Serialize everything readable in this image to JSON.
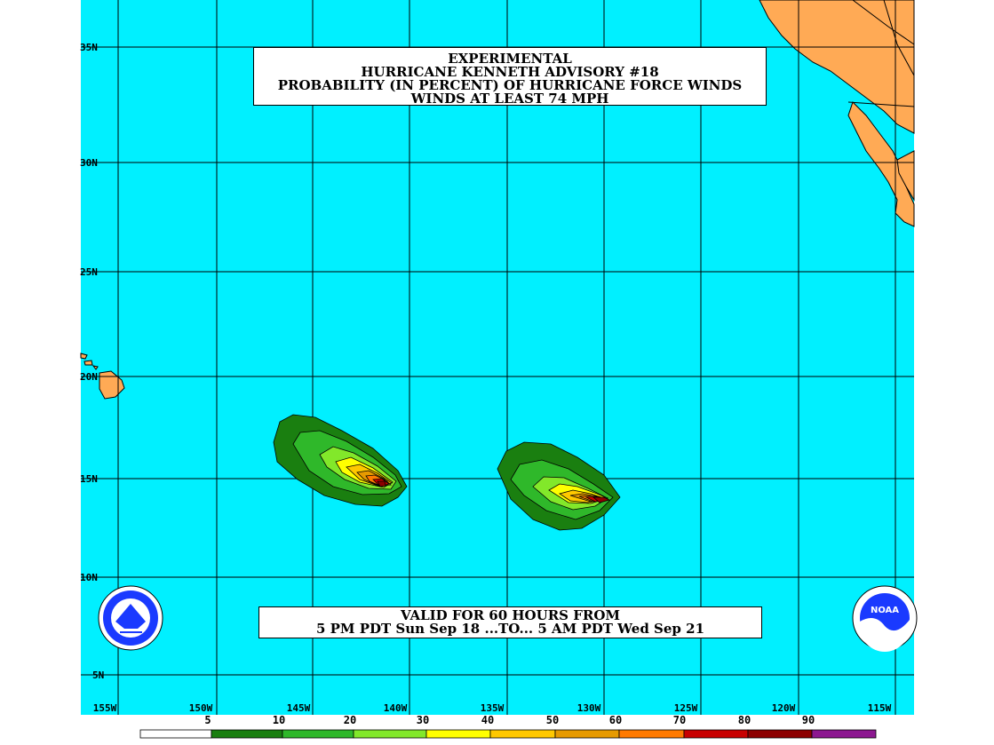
{
  "title": {
    "line1": "EXPERIMENTAL",
    "line2": "HURRICANE KENNETH ADVISORY #18",
    "line3": "PROBABILITY (IN PERCENT) OF HURRICANE FORCE WINDS",
    "line4": "WINDS AT LEAST 74 MPH"
  },
  "valid": {
    "line1": "VALID FOR 60 HOURS FROM",
    "line2": "5 PM PDT Sun Sep 18 ...TO... 5 AM PDT Wed Sep 21"
  },
  "lat_labels": [
    "35N",
    "30N",
    "25N",
    "20N",
    "15N",
    "10N",
    "5N"
  ],
  "lon_labels": [
    "155W",
    "150W",
    "145W",
    "140W",
    "135W",
    "130W",
    "125W",
    "120W",
    "115W"
  ],
  "legend": {
    "labels": [
      "5",
      "10",
      "20",
      "30",
      "40",
      "50",
      "60",
      "70",
      "80",
      "90"
    ],
    "colors": [
      "#ffffff",
      "#1a7f10",
      "#2fb82a",
      "#82e82a",
      "#ffff00",
      "#ffc800",
      "#e69a00",
      "#ff7a00",
      "#c80000",
      "#8c0000",
      "#8c1890"
    ]
  },
  "colors": {
    "ocean": "#00f0ff",
    "land": "#ffaa55",
    "grid": "#000000"
  },
  "icons": [
    "nws-logo-icon",
    "noaa-logo-icon"
  ]
}
